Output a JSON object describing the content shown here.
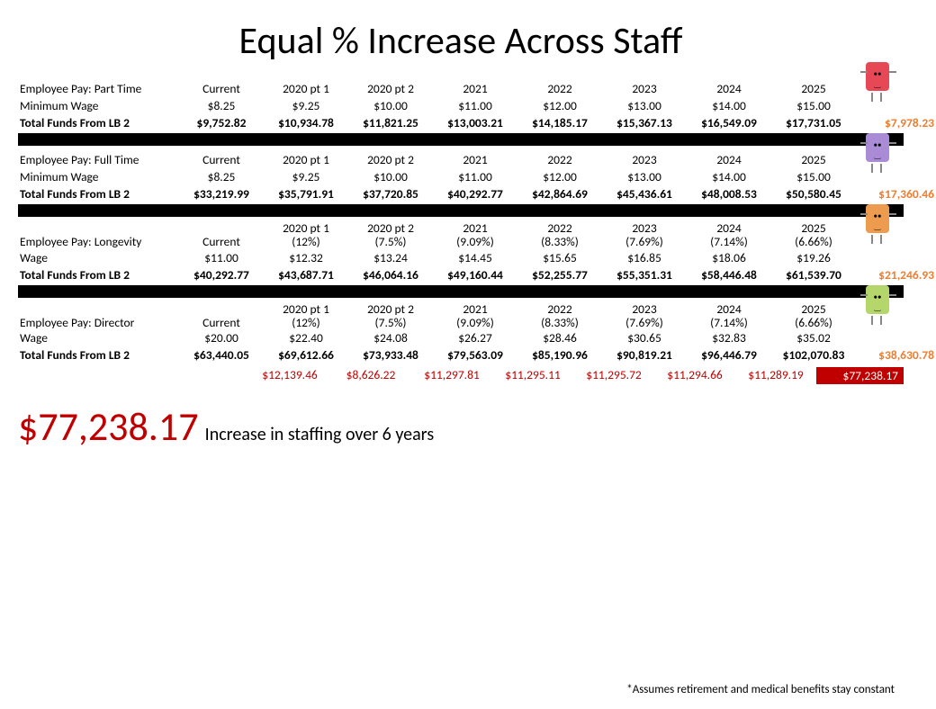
{
  "title": "Equal % Increase Across Staff",
  "columns_simple": [
    "Current",
    "2020 pt 1",
    "2020 pt 2",
    "2021",
    "2022",
    "2023",
    "2024",
    "2025"
  ],
  "sections": [
    {
      "label": "Employee Pay: Part Time",
      "wage_label": "Minimum Wage",
      "headers": [
        "Current",
        "2020 pt 1",
        "2020 pt 2",
        "2021",
        "2022",
        "2023",
        "2024",
        "2025"
      ],
      "wages": [
        "$8.25",
        "$9.25",
        "$10.00",
        "$11.00",
        "$12.00",
        "$13.00",
        "$14.00",
        "$15.00"
      ],
      "funds_label": "Total Funds From LB 2",
      "funds": [
        "$9,752.82",
        "$10,934.78",
        "$11,821.25",
        "$13,003.21",
        "$14,185.17",
        "$15,367.13",
        "$16,549.09",
        "$17,731.05"
      ],
      "delta": "$7,978.23",
      "mascot_color": "#e74856"
    },
    {
      "label": "Employee Pay: Full Time",
      "wage_label": "Minimum Wage",
      "headers": [
        "Current",
        "2020 pt 1",
        "2020 pt 2",
        "2021",
        "2022",
        "2023",
        "2024",
        "2025"
      ],
      "wages": [
        "$8.25",
        "$9.25",
        "$10.00",
        "$11.00",
        "$12.00",
        "$13.00",
        "$14.00",
        "$15.00"
      ],
      "funds_label": "Total Funds From LB 2",
      "funds": [
        "$33,219.99",
        "$35,791.91",
        "$37,720.85",
        "$40,292.77",
        "$42,864.69",
        "$45,436.61",
        "$48,008.53",
        "$50,580.45"
      ],
      "delta": "$17,360.46",
      "mascot_color": "#a98bd6"
    },
    {
      "label": "Employee Pay: Longevity",
      "wage_label": "Wage",
      "headers": [
        "Current",
        "2020 pt 1 (12%)",
        "2020 pt 2 (7.5%)",
        "2021 (9.09%)",
        "2022 (8.33%)",
        "2023 (7.69%)",
        "2024 (7.14%)",
        "2025 (6.66%)"
      ],
      "wages": [
        "$11.00",
        "$12.32",
        "$13.24",
        "$14.45",
        "$15.65",
        "$16.85",
        "$18.06",
        "$19.26"
      ],
      "funds_label": "Total Funds From LB 2",
      "funds": [
        "$40,292.77",
        "$43,687.71",
        "$46,064.16",
        "$49,160.44",
        "$52,255.77",
        "$55,351.31",
        "$58,446.48",
        "$61,539.70"
      ],
      "delta": "$21,246.93",
      "mascot_color": "#ed9b4f",
      "two_line_headers": true
    },
    {
      "label": "Employee Pay: Director",
      "wage_label": "Wage",
      "headers": [
        "Current",
        "2020 pt 1 (12%)",
        "2020 pt 2 (7.5%)",
        "2021 (9.09%)",
        "2022 (8.33%)",
        "2023 (7.69%)",
        "2024 (7.14%)",
        "2025 (6.66%)"
      ],
      "wages": [
        "$20.00",
        "$22.40",
        "$24.08",
        "$26.27",
        "$28.46",
        "$30.65",
        "$32.83",
        "$35.02"
      ],
      "funds_label": "Total Funds From LB 2",
      "funds": [
        "$63,440.05",
        "$69,612.66",
        "$73,933.48",
        "$79,563.09",
        "$85,190.96",
        "$90,819.21",
        "$96,446.79",
        "$102,070.83"
      ],
      "delta": "$38,630.78",
      "mascot_color": "#b5d66b",
      "two_line_headers": true
    }
  ],
  "summary_values": [
    "$12,139.46",
    "$8,626.22",
    "$11,297.81",
    "$11,295.11",
    "$11,295.72",
    "$11,294.66",
    "$11,289.19"
  ],
  "summary_total": "$77,238.17",
  "big_total": "$77,238.17",
  "big_total_text": "Increase in staffing over 6 years",
  "footnote": "*Assumes retirement and medical benefits stay constant",
  "colors": {
    "accent_orange": "#ed7d31",
    "accent_red": "#c00000",
    "black": "#000000",
    "white": "#ffffff"
  }
}
